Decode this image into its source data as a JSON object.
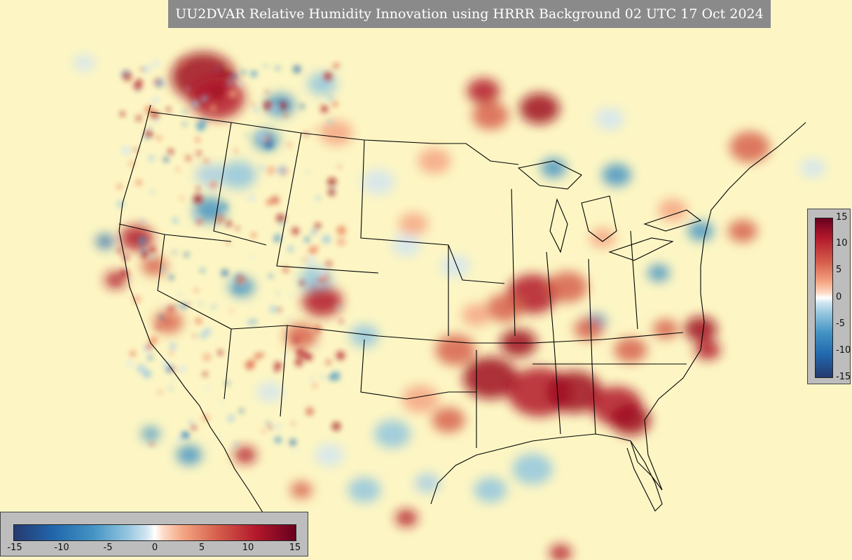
{
  "title": "UU2DVAR Relative Humidity Innovation using HRRR Background 02 UTC 17 Oct 2024",
  "colorbar": {
    "min": -15,
    "max": 15,
    "right_ticks": [
      "15",
      "10",
      "5",
      "0",
      "-5",
      "-10",
      "-15"
    ],
    "bottom_ticks": [
      "-15",
      "-10",
      "-5",
      "0",
      "5",
      "10",
      "15"
    ],
    "colors": {
      "dark_negative": "#253a6e",
      "neutral": "#ffffff",
      "background_low": "#fdf6c4",
      "dark_positive": "#67001f"
    }
  }
}
